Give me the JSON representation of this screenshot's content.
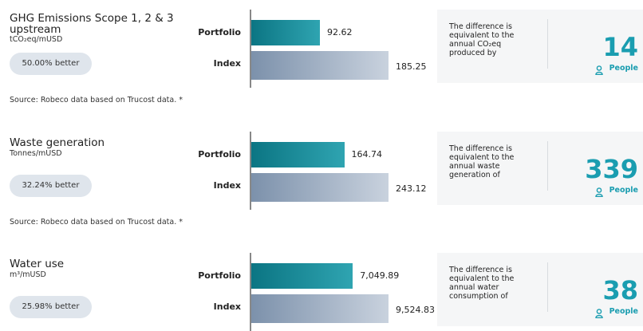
{
  "sections": [
    {
      "title": "GHG Emissions Scope 1, 2 & 3 upstream",
      "unit": "tCO₂eq/mUSD",
      "badge": "50.00% better",
      "categories": [
        "Portfolio",
        "Index"
      ],
      "values": [
        92.62,
        185.25
      ],
      "note": "The difference is equivalent to the annual CO₂eq produced by",
      "count": 14,
      "count_label": "People",
      "source": "Source: Robeco data based on Trucost data. *"
    },
    {
      "title": "Waste generation",
      "unit": "Tonnes/mUSD",
      "badge": "32.24% better",
      "categories": [
        "Portfolio",
        "Index"
      ],
      "values": [
        164.74,
        243.12
      ],
      "note": "The difference is equivalent to the annual waste generation of",
      "count": 339,
      "count_label": "People",
      "source": "Source: Robeco data based on Trucost data. *"
    },
    {
      "title": "Water use",
      "unit": "m³/mUSD",
      "badge": "25.98% better",
      "categories": [
        "Portfolio",
        "Index"
      ],
      "values": [
        7049.89,
        9524.83
      ],
      "value_labels": [
        "7,049.89",
        "9,524.83"
      ],
      "note": "The difference is equivalent to the annual water consumption of",
      "count": 38,
      "count_label": "People"
    }
  ]
}
